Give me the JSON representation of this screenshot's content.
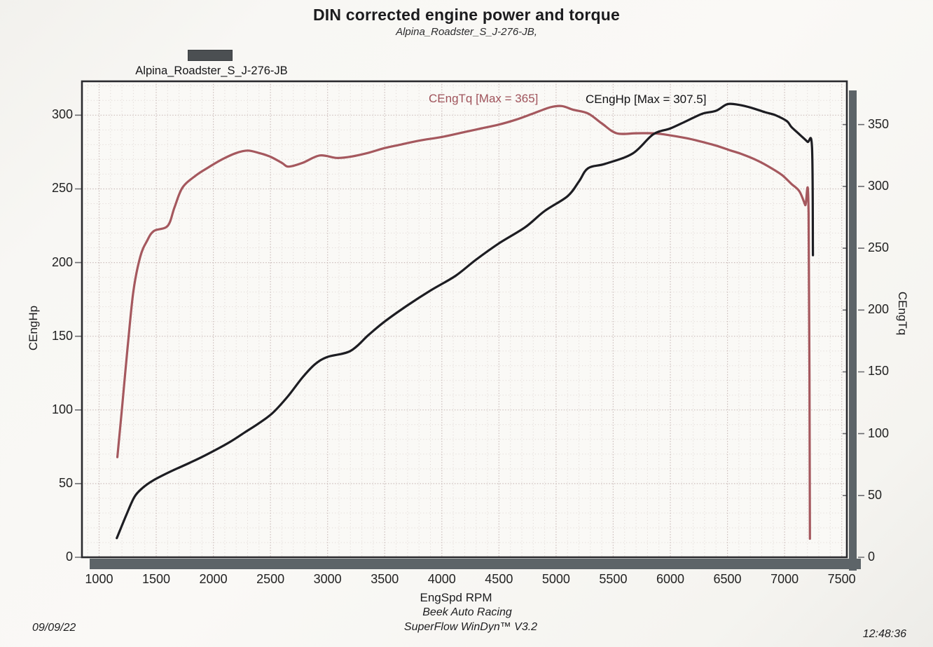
{
  "header": {
    "title": "DIN corrected engine power and torque",
    "subtitle": "Alpina_Roadster_S_J-276-JB,"
  },
  "legend": {
    "label": "Alpina_Roadster_S_J-276-JB",
    "swatch_color": "#4b4f52"
  },
  "footer": {
    "facility": "Beek Auto Racing",
    "software": "SuperFlow WinDyn™ V3.2",
    "date": "09/09/22",
    "time": "12:48:36"
  },
  "colors": {
    "power_curve": "#1d1d22",
    "torque_curve": "#a5585e",
    "frame": "#2a2a2e",
    "shadow_bar": "#5d6468",
    "grid_minor": "#e2dad7",
    "grid_major": "#c9bab8",
    "plot_bg": "#faf9f6"
  },
  "chart_data": {
    "type": "line",
    "title": "DIN corrected engine power and torque",
    "subtitle": "Alpina_Roadster_S_J-276-JB,",
    "x_axis": {
      "label": "EngSpd RPM",
      "min": 850,
      "max": 7545,
      "ticks": [
        1000,
        1500,
        2000,
        2500,
        3000,
        3500,
        4000,
        4500,
        5000,
        5500,
        6000,
        6500,
        7000,
        7500
      ],
      "minor_step": 100
    },
    "left_axis": {
      "label": "CEngHp",
      "min": 0,
      "max": 323,
      "ticks": [
        0,
        50,
        100,
        150,
        200,
        250,
        300
      ],
      "minor_step": 10
    },
    "right_axis": {
      "label": "CEngTq",
      "min": 0,
      "max": 385,
      "ticks": [
        0,
        50,
        100,
        150,
        200,
        250,
        300,
        350
      ]
    },
    "series": [
      {
        "name": "CEngTq",
        "label": "CEngTq [Max = 365]",
        "max_value": 365,
        "axis": "right",
        "color": "#a5585e",
        "points": [
          [
            1160,
            81
          ],
          [
            1200,
            120
          ],
          [
            1250,
            170
          ],
          [
            1300,
            215
          ],
          [
            1360,
            243
          ],
          [
            1420,
            256
          ],
          [
            1480,
            264
          ],
          [
            1600,
            268
          ],
          [
            1660,
            283
          ],
          [
            1730,
            299
          ],
          [
            1850,
            309
          ],
          [
            1950,
            315
          ],
          [
            2080,
            322
          ],
          [
            2200,
            327
          ],
          [
            2300,
            329
          ],
          [
            2400,
            327
          ],
          [
            2500,
            324
          ],
          [
            2600,
            319
          ],
          [
            2660,
            316
          ],
          [
            2780,
            319
          ],
          [
            2930,
            325
          ],
          [
            3080,
            323
          ],
          [
            3200,
            324
          ],
          [
            3350,
            327
          ],
          [
            3500,
            331
          ],
          [
            3650,
            334
          ],
          [
            3800,
            337
          ],
          [
            4000,
            340
          ],
          [
            4200,
            344
          ],
          [
            4350,
            347
          ],
          [
            4500,
            350
          ],
          [
            4650,
            354
          ],
          [
            4800,
            359
          ],
          [
            4950,
            364
          ],
          [
            5050,
            365
          ],
          [
            5150,
            362
          ],
          [
            5280,
            359
          ],
          [
            5400,
            351
          ],
          [
            5530,
            343
          ],
          [
            5700,
            343
          ],
          [
            5850,
            343
          ],
          [
            5950,
            342
          ],
          [
            6140,
            339
          ],
          [
            6280,
            336
          ],
          [
            6400,
            333
          ],
          [
            6530,
            329
          ],
          [
            6630,
            326
          ],
          [
            6760,
            321
          ],
          [
            6880,
            315
          ],
          [
            6980,
            309
          ],
          [
            7060,
            302
          ],
          [
            7130,
            296
          ],
          [
            7180,
            285
          ],
          [
            7210,
            278
          ],
          [
            7222,
            15
          ]
        ]
      },
      {
        "name": "CEngHp",
        "label": "CEngHp [Max = 307.5]",
        "max_value": 307.5,
        "axis": "left",
        "color": "#1d1d22",
        "points": [
          [
            1155,
            13
          ],
          [
            1240,
            29
          ],
          [
            1310,
            41
          ],
          [
            1380,
            47
          ],
          [
            1470,
            52
          ],
          [
            1620,
            58
          ],
          [
            1790,
            64
          ],
          [
            1950,
            70
          ],
          [
            2140,
            78
          ],
          [
            2280,
            85
          ],
          [
            2400,
            91
          ],
          [
            2520,
            98
          ],
          [
            2650,
            109
          ],
          [
            2780,
            122
          ],
          [
            2890,
            131
          ],
          [
            3000,
            136
          ],
          [
            3200,
            140
          ],
          [
            3360,
            151
          ],
          [
            3500,
            160
          ],
          [
            3700,
            171
          ],
          [
            3900,
            181
          ],
          [
            4120,
            191
          ],
          [
            4300,
            202
          ],
          [
            4500,
            213
          ],
          [
            4730,
            224
          ],
          [
            4900,
            235
          ],
          [
            5100,
            245
          ],
          [
            5200,
            255
          ],
          [
            5280,
            264
          ],
          [
            5430,
            267
          ],
          [
            5670,
            274
          ],
          [
            5850,
            287
          ],
          [
            6000,
            291
          ],
          [
            6140,
            296
          ],
          [
            6280,
            301
          ],
          [
            6400,
            303
          ],
          [
            6500,
            307.5
          ],
          [
            6600,
            307
          ],
          [
            6710,
            305
          ],
          [
            6830,
            302
          ],
          [
            6920,
            300
          ],
          [
            7020,
            296
          ],
          [
            7060,
            292
          ],
          [
            7130,
            287
          ],
          [
            7200,
            282
          ],
          [
            7240,
            278
          ],
          [
            7248,
            205
          ]
        ]
      }
    ]
  }
}
